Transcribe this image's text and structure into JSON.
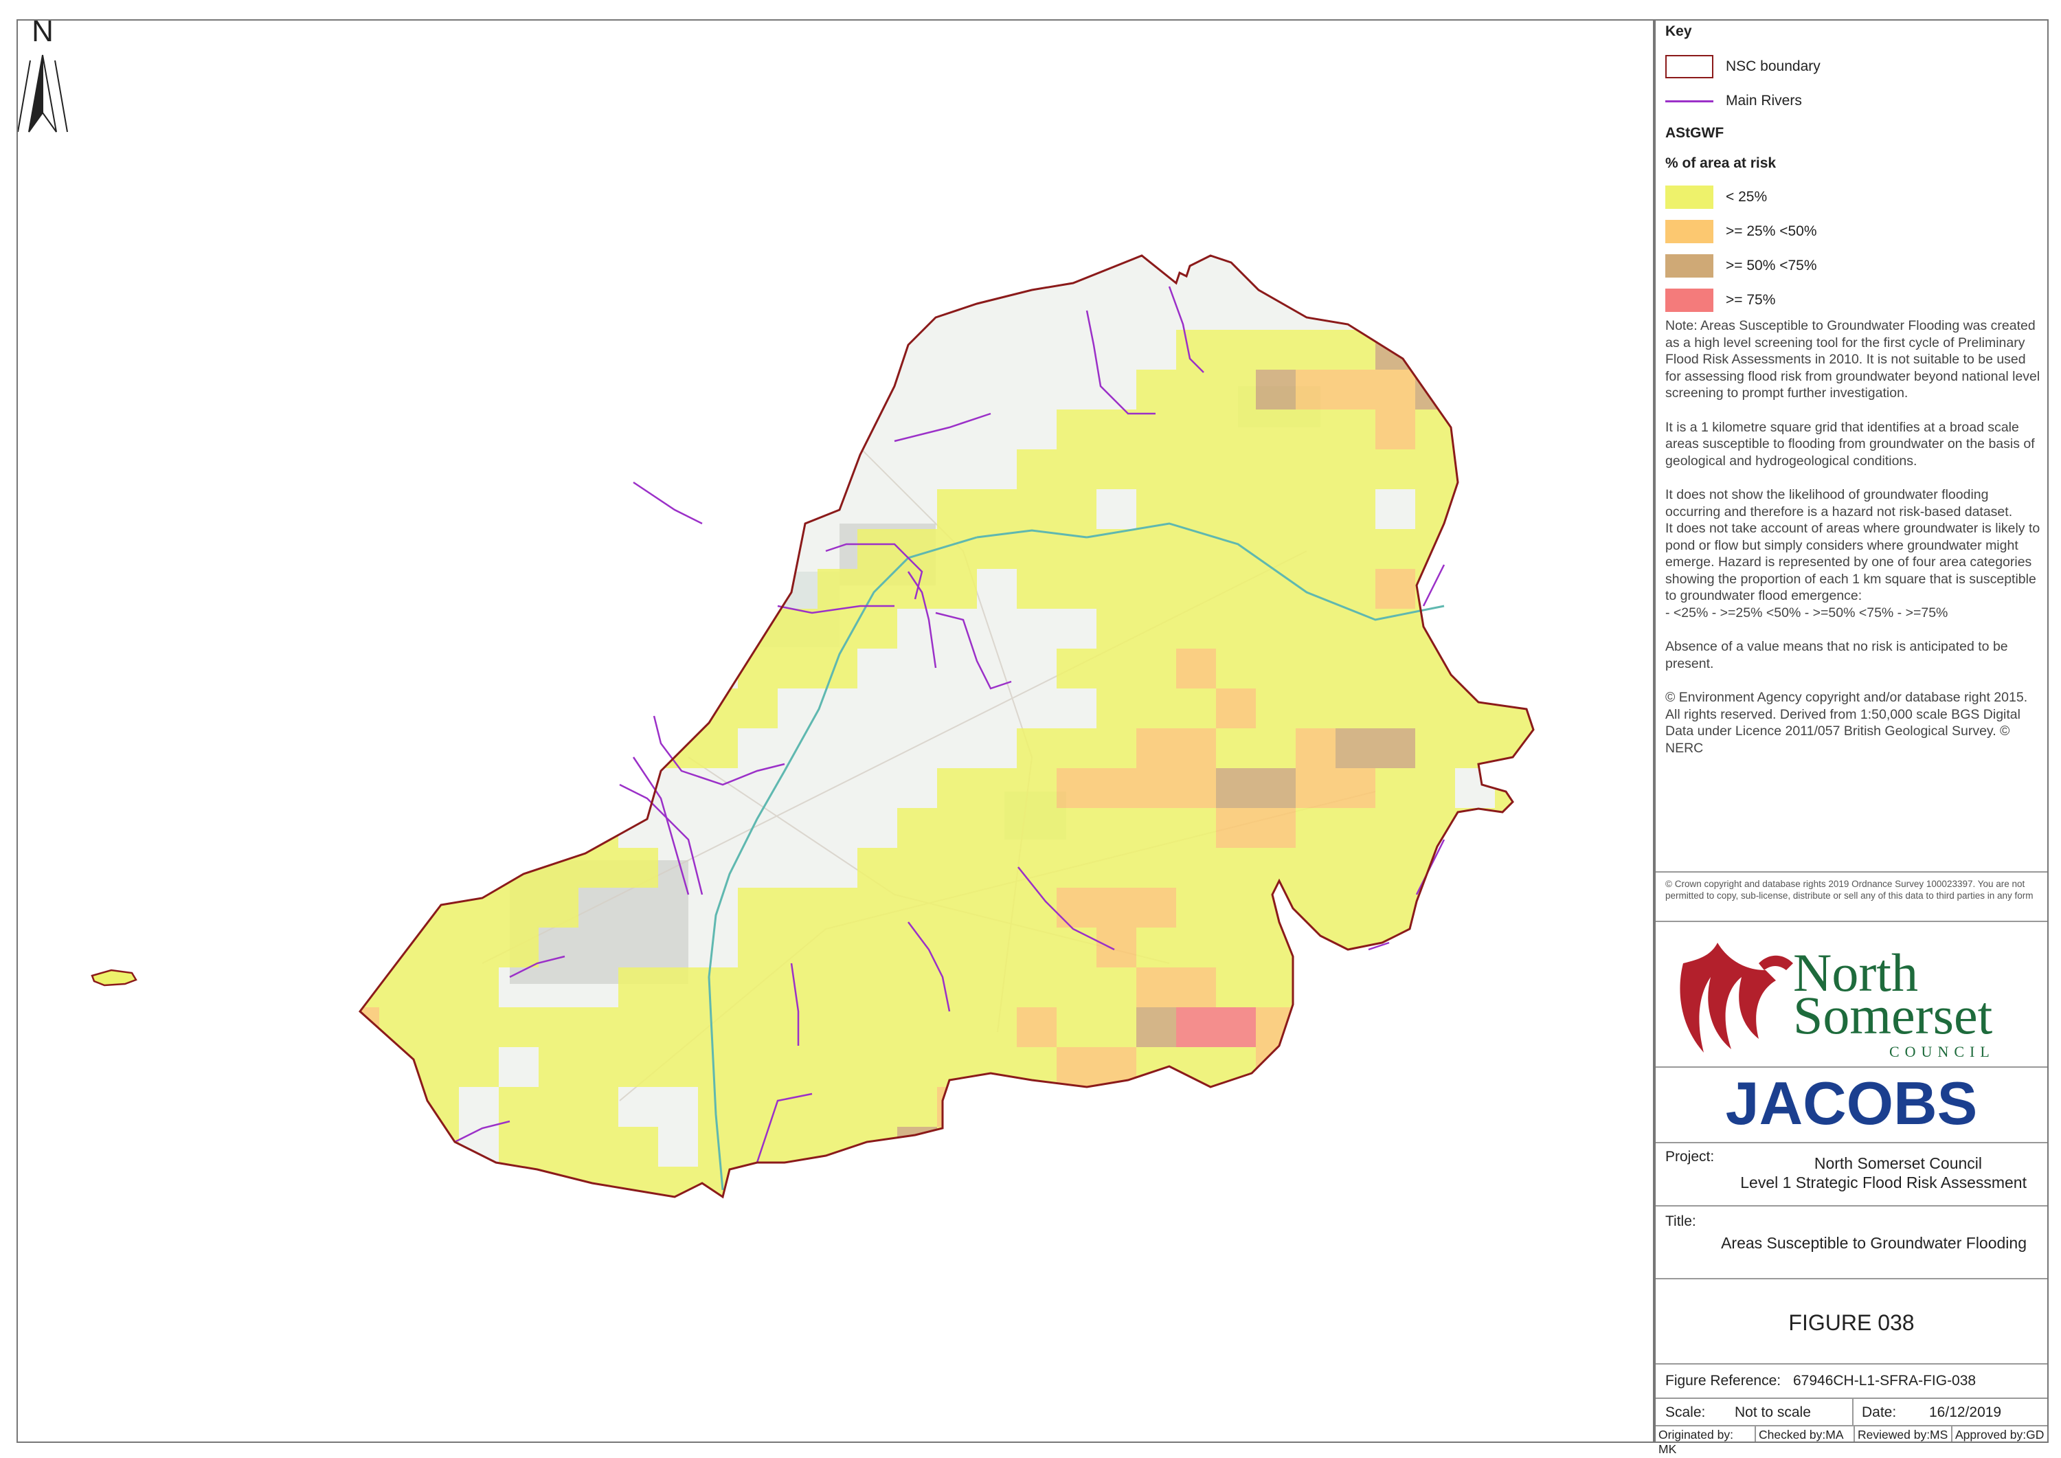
{
  "north_arrow": {
    "label": "N"
  },
  "legend": {
    "title": "Key",
    "items": [
      {
        "label": "NSC boundary",
        "type": "box",
        "color": "#8b1a1a"
      },
      {
        "label": "Main Rivers",
        "type": "line",
        "color": "#9b30c8"
      }
    ],
    "dataset_name": "AStGWF",
    "category_title": "% of area at risk",
    "categories": [
      {
        "label": "< 25%",
        "color": "#eef26b"
      },
      {
        "label": ">= 25% <50%",
        "color": "#fcc870"
      },
      {
        "label": ">= 50% <75%",
        "color": "#cfa976"
      },
      {
        "label": ">= 75%",
        "color": "#f47b7b"
      }
    ]
  },
  "note": {
    "p1": "Note: Areas Susceptible to Groundwater Flooding was created as a high level screening tool for the first cycle of Preliminary Flood Risk Assessments in 2010. It is not suitable to be used for assessing flood risk from groundwater beyond national level screening to prompt further investigation.",
    "p2": "It is a 1 kilometre square grid that identifies at a broad scale areas susceptible to flooding from groundwater on the basis of geological and hydrogeological conditions.",
    "p3": "It does not show the likelihood of groundwater flooding occurring and therefore is a hazard not risk-based dataset.",
    "p4": "It does not take account of areas where groundwater is likely to pond or flow but simply considers where groundwater might emerge. Hazard is represented by one of four area categories showing the proportion of each 1 km square that is susceptible to groundwater flood emergence:",
    "p4b": " - <25% - >=25% <50% - >=50% <75% - >=75%",
    "p5": "Absence of a value means that no risk is anticipated to be present.",
    "p6": "© Environment Agency copyright and/or database right 2015. All rights  reserved. Derived from 1:50,000 scale BGS Digital Data under Licence 2011/057 British Geological Survey. © NERC"
  },
  "crown_copyright": "© Crown copyright and database rights 2019 Ordnance Survey 100023397. You are not permitted to copy, sub-license, distribute or sell any of this data to third parties in any form",
  "logos": {
    "nsc_line1": "North",
    "nsc_line2": "Somerset",
    "nsc_line3": "COUNCIL",
    "jacobs": "JACOBS"
  },
  "project": {
    "label": "Project:",
    "line1": "North Somerset Council",
    "line2": "Level 1 Strategic Flood Risk Assessment"
  },
  "title_block": {
    "label": "Title:",
    "value": "Areas Susceptible to Groundwater Flooding"
  },
  "figure": {
    "number": "FIGURE 038"
  },
  "figure_reference": {
    "label": "Figure Reference:",
    "value": "67946CH-L1-SFRA-FIG-038"
  },
  "scale": {
    "label": "Scale:",
    "value": "Not to scale"
  },
  "date": {
    "label": "Date:",
    "value": "16/12/2019"
  },
  "signoff": {
    "originated": "Originated by: MK",
    "checked": "Checked by:MA",
    "reviewed": "Reviewed by:MS",
    "approved": "Approved by:GD"
  },
  "colors": {
    "boundary": "#8b1a1a",
    "river": "#9b30c8",
    "motorway": "#5fb8b0",
    "jacobs_blue": "#1b3f8f",
    "nsc_green": "#1e6b3c",
    "nsc_red": "#b3202c"
  }
}
